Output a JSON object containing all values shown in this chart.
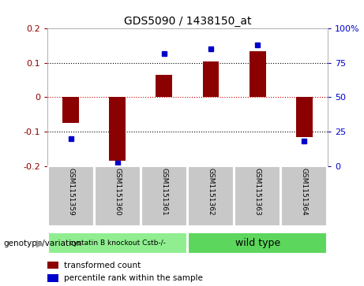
{
  "title": "GDS5090 / 1438150_at",
  "samples": [
    "GSM1151359",
    "GSM1151360",
    "GSM1151361",
    "GSM1151362",
    "GSM1151363",
    "GSM1151364"
  ],
  "transformed_count": [
    -0.075,
    -0.185,
    0.065,
    0.105,
    0.135,
    -0.115
  ],
  "percentile_rank": [
    20,
    2,
    82,
    85,
    88,
    18
  ],
  "ylim_left": [
    -0.2,
    0.2
  ],
  "ylim_right": [
    0,
    100
  ],
  "yticks_left": [
    -0.2,
    -0.1,
    0,
    0.1,
    0.2
  ],
  "yticks_right": [
    0,
    25,
    50,
    75,
    100
  ],
  "bar_color": "#8B0000",
  "dot_color": "#0000CD",
  "zero_line_color": "#CC0000",
  "grid_color": "black",
  "group1_label": "cystatin B knockout Cstb-/-",
  "group2_label": "wild type",
  "group1_indices": [
    0,
    1,
    2
  ],
  "group2_indices": [
    3,
    4,
    5
  ],
  "group1_color": "#90EE90",
  "group2_color": "#5CD65C",
  "genotype_label": "genotype/variation",
  "legend1": "transformed count",
  "legend2": "percentile rank within the sample",
  "background_color": "#FFFFFF",
  "plot_bg_color": "#FFFFFF",
  "tick_label_bg": "#C8C8C8",
  "arrow_color": "#999999"
}
